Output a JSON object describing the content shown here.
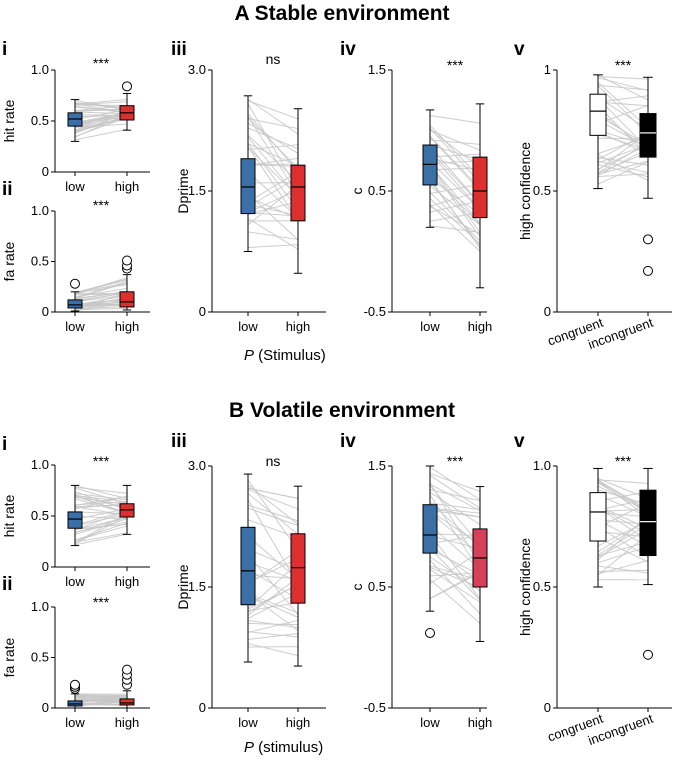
{
  "colors": {
    "low": "#3b6fa8",
    "high_A": "#dc3030",
    "high_B_c": "#d6405a",
    "line": "#c8c8c8",
    "text": "#000000"
  },
  "sections": [
    {
      "title": "A Stable environment",
      "footer": {
        "italic": "P",
        "rest": " (Stimulus)"
      }
    },
    {
      "title": "B Volatile environment",
      "footer": {
        "italic": "P",
        "rest": " (stimulus)"
      }
    }
  ],
  "chart_data": [
    {
      "id": "A-i",
      "type": "box",
      "label": "i",
      "ylabel": "hit rate",
      "ylim": [
        0,
        1
      ],
      "yticks": [
        "0",
        "0.5",
        "1.0"
      ],
      "yticks_values": [
        0,
        0.5,
        1.0
      ],
      "categories": [
        "low",
        "high"
      ],
      "significance": "***",
      "boxes": [
        {
          "min": 0.3,
          "q1": 0.45,
          "med": 0.52,
          "q3": 0.58,
          "max": 0.71,
          "fill": "#3b6fa8",
          "outliers": []
        },
        {
          "min": 0.41,
          "q1": 0.51,
          "med": 0.58,
          "q3": 0.65,
          "max": 0.77,
          "fill": "#dc3030",
          "outliers": [
            0.84
          ]
        }
      ]
    },
    {
      "id": "A-ii",
      "type": "box",
      "label": "ii",
      "ylabel": "fa rate",
      "ylim": [
        0,
        1
      ],
      "yticks": [
        "0",
        "0.5",
        "1.0"
      ],
      "yticks_values": [
        0,
        0.5,
        1.0
      ],
      "categories": [
        "low",
        "high"
      ],
      "significance": "***",
      "boxes": [
        {
          "min": 0.01,
          "q1": 0.04,
          "med": 0.07,
          "q3": 0.12,
          "max": 0.2,
          "fill": "#3b6fa8",
          "outliers": [
            0.28
          ]
        },
        {
          "min": 0.02,
          "q1": 0.05,
          "med": 0.1,
          "q3": 0.2,
          "max": 0.37,
          "fill": "#dc3030",
          "outliers": [
            0.43,
            0.46,
            0.51
          ]
        }
      ]
    },
    {
      "id": "A-iii",
      "type": "box",
      "label": "iii",
      "ylabel": "Dprime",
      "ylim": [
        0,
        3
      ],
      "yticks": [
        "0",
        "1.5",
        "3.0"
      ],
      "yticks_values": [
        0,
        1.5,
        3.0
      ],
      "categories": [
        "low",
        "high"
      ],
      "significance": "ns",
      "boxes": [
        {
          "min": 0.75,
          "q1": 1.22,
          "med": 1.55,
          "q3": 1.9,
          "max": 2.68,
          "fill": "#3b6fa8",
          "outliers": []
        },
        {
          "min": 0.48,
          "q1": 1.13,
          "med": 1.55,
          "q3": 1.82,
          "max": 2.52,
          "fill": "#dc3030",
          "outliers": []
        }
      ]
    },
    {
      "id": "A-iv",
      "type": "box",
      "label": "iv",
      "ylabel": "c",
      "ylim": [
        -0.5,
        1.5
      ],
      "yticks": [
        "-0.5",
        "0.5",
        "1.5"
      ],
      "yticks_values": [
        -0.5,
        0.5,
        1.5
      ],
      "categories": [
        "low",
        "high"
      ],
      "significance": "***",
      "boxes": [
        {
          "min": 0.2,
          "q1": 0.55,
          "med": 0.72,
          "q3": 0.88,
          "max": 1.17,
          "fill": "#3b6fa8",
          "outliers": []
        },
        {
          "min": -0.3,
          "q1": 0.28,
          "med": 0.5,
          "q3": 0.78,
          "max": 1.22,
          "fill": "#dc3030",
          "outliers": []
        }
      ]
    },
    {
      "id": "A-v",
      "type": "box",
      "label": "v",
      "ylabel": "high confidence",
      "ylim": [
        0,
        1
      ],
      "yticks": [
        "0",
        "0.5",
        "1"
      ],
      "yticks_values": [
        0,
        0.5,
        1.0
      ],
      "categories": [
        "congruent",
        "incongruent"
      ],
      "significance": "***",
      "boxes": [
        {
          "min": 0.51,
          "q1": 0.73,
          "med": 0.83,
          "q3": 0.9,
          "max": 0.98,
          "fill": "#ffffff",
          "outliers": []
        },
        {
          "min": 0.47,
          "q1": 0.64,
          "med": 0.74,
          "q3": 0.82,
          "max": 0.97,
          "fill": "#000000",
          "outliers": [
            0.3,
            0.17
          ]
        }
      ]
    },
    {
      "id": "B-i",
      "type": "box",
      "label": "i",
      "ylabel": "hit rate",
      "ylim": [
        0,
        1
      ],
      "yticks": [
        "0",
        "0.5",
        "1.0"
      ],
      "yticks_values": [
        0,
        0.5,
        1.0
      ],
      "categories": [
        "low",
        "high"
      ],
      "significance": "***",
      "boxes": [
        {
          "min": 0.21,
          "q1": 0.38,
          "med": 0.47,
          "q3": 0.54,
          "max": 0.8,
          "fill": "#3b6fa8",
          "outliers": []
        },
        {
          "min": 0.32,
          "q1": 0.49,
          "med": 0.56,
          "q3": 0.62,
          "max": 0.8,
          "fill": "#dc3030",
          "outliers": []
        }
      ]
    },
    {
      "id": "B-ii",
      "type": "box",
      "label": "ii",
      "ylabel": "fa rate",
      "ylim": [
        0,
        1
      ],
      "yticks": [
        "0",
        "0.5",
        "1.0"
      ],
      "yticks_values": [
        0,
        0.5,
        1.0
      ],
      "categories": [
        "low",
        "high"
      ],
      "significance": "***",
      "boxes": [
        {
          "min": 0.0,
          "q1": 0.02,
          "med": 0.04,
          "q3": 0.07,
          "max": 0.14,
          "fill": "#3b6fa8",
          "outliers": [
            0.19,
            0.21,
            0.23
          ]
        },
        {
          "min": 0.0,
          "q1": 0.03,
          "med": 0.05,
          "q3": 0.09,
          "max": 0.17,
          "fill": "#dc3030",
          "outliers": [
            0.23,
            0.28,
            0.33,
            0.38
          ]
        }
      ]
    },
    {
      "id": "B-iii",
      "type": "box",
      "label": "iii",
      "ylabel": "Dprime",
      "ylim": [
        0,
        3
      ],
      "yticks": [
        "0",
        "1.5",
        "3.0"
      ],
      "yticks_values": [
        0,
        1.5,
        3.0
      ],
      "categories": [
        "low",
        "high"
      ],
      "significance": "ns",
      "boxes": [
        {
          "min": 0.57,
          "q1": 1.28,
          "med": 1.7,
          "q3": 2.24,
          "max": 2.9,
          "fill": "#3b6fa8",
          "outliers": []
        },
        {
          "min": 0.52,
          "q1": 1.3,
          "med": 1.74,
          "q3": 2.16,
          "max": 2.75,
          "fill": "#dc3030",
          "outliers": []
        }
      ]
    },
    {
      "id": "B-iv",
      "type": "box",
      "label": "iv",
      "ylabel": "c",
      "ylim": [
        -0.5,
        1.5
      ],
      "yticks": [
        "-0.5",
        "0.5",
        "1.5"
      ],
      "yticks_values": [
        -0.5,
        0.5,
        1.5
      ],
      "categories": [
        "low",
        "high"
      ],
      "significance": "***",
      "boxes": [
        {
          "min": 0.3,
          "q1": 0.78,
          "med": 0.93,
          "q3": 1.18,
          "max": 1.5,
          "fill": "#3b6fa8",
          "outliers": [
            0.12
          ]
        },
        {
          "min": 0.05,
          "q1": 0.5,
          "med": 0.74,
          "q3": 0.98,
          "max": 1.33,
          "fill": "#d6405a",
          "outliers": []
        }
      ]
    },
    {
      "id": "B-v",
      "type": "box",
      "label": "v",
      "ylabel": "high confidence",
      "ylim": [
        0,
        1
      ],
      "yticks": [
        "0",
        "0.5",
        "1.0"
      ],
      "yticks_values": [
        0,
        0.5,
        1.0
      ],
      "categories": [
        "congruent",
        "incongruent"
      ],
      "significance": "***",
      "boxes": [
        {
          "min": 0.5,
          "q1": 0.69,
          "med": 0.81,
          "q3": 0.89,
          "max": 0.99,
          "fill": "#ffffff",
          "outliers": []
        },
        {
          "min": 0.51,
          "q1": 0.63,
          "med": 0.77,
          "q3": 0.9,
          "max": 0.99,
          "fill": "#000000",
          "outliers": [
            0.22
          ]
        }
      ]
    }
  ]
}
